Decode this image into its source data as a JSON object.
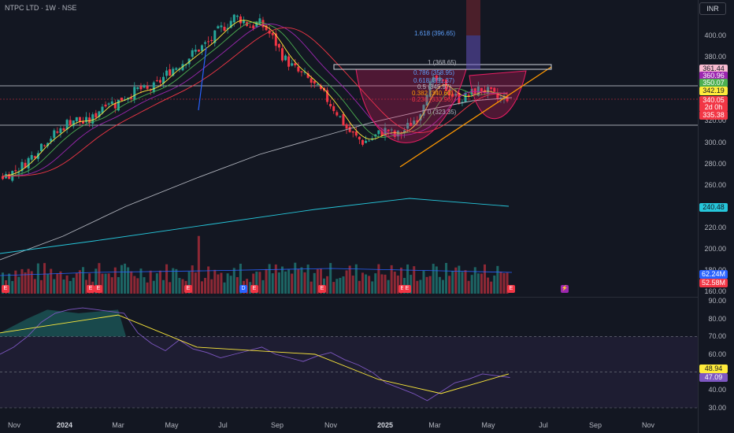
{
  "header": {
    "title": "NTPC LTD · 1W · NSE",
    "currency": "INR"
  },
  "price_axis": [
    "400.00",
    "380.00",
    "320.00",
    "300.00",
    "280.00",
    "260.00",
    "240.00",
    "220.00",
    "200.00",
    "180.00",
    "160.00"
  ],
  "price_tags": [
    {
      "label": "361.44",
      "bg": "#f8bbd0",
      "fg": "#131722"
    },
    {
      "label": "360.96",
      "bg": "#9c27b0",
      "fg": "#ffffff"
    },
    {
      "label": "350.07",
      "bg": "#4caf50",
      "fg": "#ffffff"
    },
    {
      "label": "342.19",
      "bg": "#ffeb3b",
      "fg": "#131722"
    },
    {
      "label": "340.05",
      "bg": "#f23645",
      "fg": "#ffffff"
    },
    {
      "label": "2d 0h",
      "bg": "#f23645",
      "fg": "#ffffff"
    },
    {
      "label": "335.38",
      "bg": "#f23645",
      "fg": "#ffffff"
    },
    {
      "label": "240.48",
      "bg": "#26c6da",
      "fg": "#131722"
    }
  ],
  "volume_tags": [
    {
      "label": "62.24M",
      "bg": "#2962ff",
      "fg": "#ffffff"
    },
    {
      "label": "52.58M",
      "bg": "#f23645",
      "fg": "#ffffff"
    }
  ],
  "rsi_axis": [
    "90.00",
    "80.00",
    "70.00",
    "60.00",
    "50.00",
    "40.00",
    "30.00"
  ],
  "rsi_tags": [
    {
      "label": "48.94",
      "bg": "#ffeb3b",
      "fg": "#131722"
    },
    {
      "label": "47.09",
      "bg": "#7e57c2",
      "fg": "#ffffff"
    }
  ],
  "time_axis": [
    {
      "label": "Nov",
      "bold": false
    },
    {
      "label": "2024",
      "bold": true
    },
    {
      "label": "Mar",
      "bold": false
    },
    {
      "label": "May",
      "bold": false
    },
    {
      "label": "Jul",
      "bold": false
    },
    {
      "label": "Sep",
      "bold": false
    },
    {
      "label": "Nov",
      "bold": false
    },
    {
      "label": "2025",
      "bold": true
    },
    {
      "label": "Mar",
      "bold": false
    },
    {
      "label": "May",
      "bold": false
    },
    {
      "label": "Jul",
      "bold": false
    },
    {
      "label": "Sep",
      "bold": false
    },
    {
      "label": "Nov",
      "bold": false
    }
  ],
  "fib_labels": [
    {
      "text": "1.618 (396.65)",
      "color": "#5b9cf6"
    },
    {
      "text": "1 (368.65)",
      "color": "#b2b5be"
    },
    {
      "text": "0.786 (358.95)",
      "color": "#5b9cf6"
    },
    {
      "text": "0.618 (351.37)",
      "color": "#5b9cf6"
    },
    {
      "text": "0.5 (345.97)",
      "color": "#b2b5be"
    },
    {
      "text": "0.382 (340.60)",
      "color": "#ff9800"
    },
    {
      "text": "0.236 (333.96)",
      "color": "#f23645"
    },
    {
      "text": "0 (323.35)",
      "color": "#b2b5be"
    }
  ],
  "event_markers": [
    "E",
    "E",
    "E",
    "E",
    "D",
    "E",
    "E",
    "E",
    "E",
    "E",
    "⚡",
    "E"
  ],
  "colors": {
    "up": "#26a69a",
    "down": "#f23645",
    "background": "#131722"
  },
  "chart_data": {
    "type": "candlestick",
    "symbol": "NTPC LTD",
    "interval": "1W",
    "exchange": "NSE",
    "currency": "INR",
    "x_range": [
      "2023-11",
      "2025-11"
    ],
    "ylim": [
      160,
      420
    ],
    "close_path": [
      268,
      271,
      275,
      282,
      290,
      300,
      305,
      310,
      318,
      322,
      318,
      320,
      330,
      340,
      335,
      342,
      345,
      350,
      348,
      352,
      360,
      368,
      372,
      378,
      385,
      390,
      395,
      405,
      410,
      418,
      414,
      408,
      412,
      405,
      394,
      380,
      372,
      365,
      360,
      352,
      345,
      335,
      325,
      312,
      305,
      300,
      303,
      308,
      312,
      305,
      310,
      318,
      325,
      350,
      358,
      354,
      345,
      340,
      343,
      348,
      350,
      345,
      340,
      342
    ],
    "moving_averages": [
      {
        "period_hint": "short",
        "color": "#ffeb3b",
        "last": 342.19
      },
      {
        "period_hint": "medium",
        "color": "#4caf50",
        "last": 350.07
      },
      {
        "period_hint": "medium-long",
        "color": "#9c27b0",
        "last": 360.96
      },
      {
        "period_hint": "long",
        "color": "#b2b5be",
        "last": 335.38
      },
      {
        "period_hint": "very-long",
        "color": "#26c6da",
        "last": 240.48
      }
    ],
    "pattern": "cup and handle",
    "fibonacci": [
      {
        "level": 1.618,
        "price": 396.65
      },
      {
        "level": 1,
        "price": 368.65
      },
      {
        "level": 0.786,
        "price": 358.95
      },
      {
        "level": 0.618,
        "price": 351.37
      },
      {
        "level": 0.5,
        "price": 345.97
      },
      {
        "level": 0.382,
        "price": 340.6
      },
      {
        "level": 0.236,
        "price": 333.96
      },
      {
        "level": 0,
        "price": 323.35
      }
    ],
    "last_close": 340.05,
    "volume": {
      "last": "52.58M",
      "ma": "62.24M"
    },
    "rsi": {
      "value": 47.09,
      "signal": 48.94,
      "levels": [
        30,
        70
      ],
      "ylim": [
        30,
        90
      ]
    }
  }
}
